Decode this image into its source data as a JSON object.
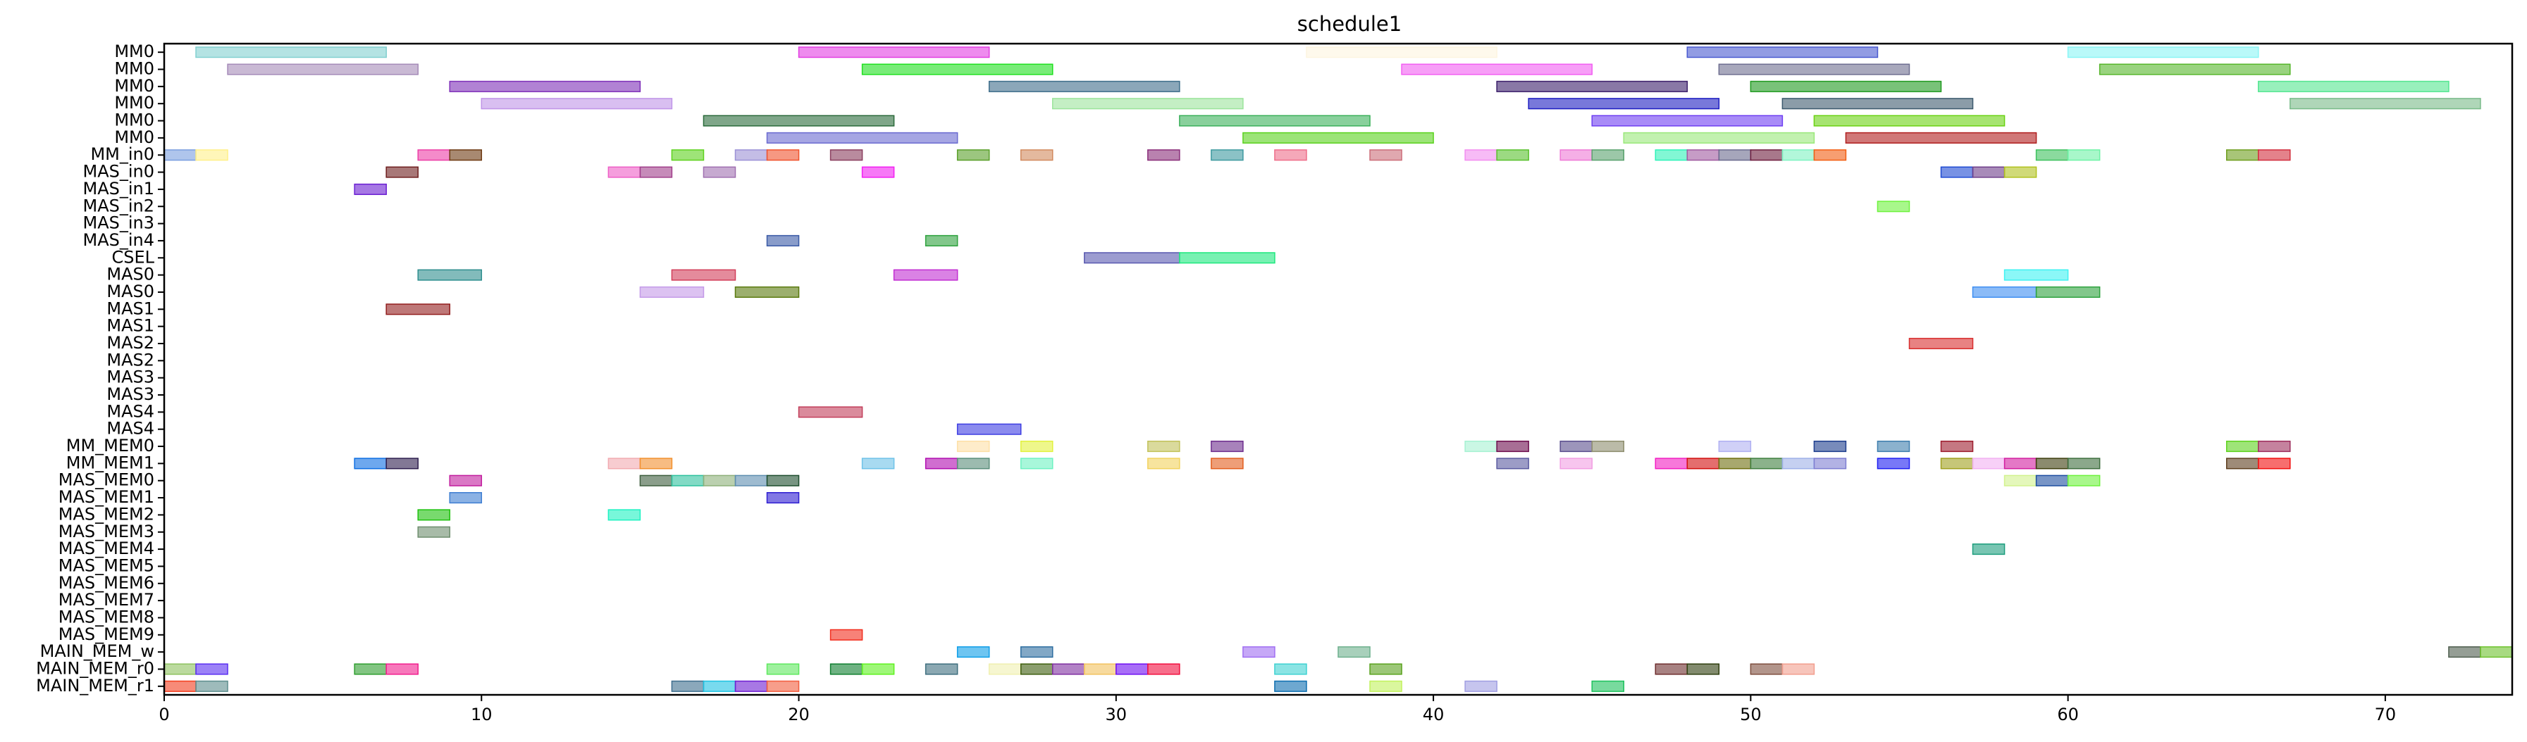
{
  "chart_data": {
    "type": "gantt",
    "title": "schedule1",
    "xlim": [
      0,
      74
    ],
    "xticks": [
      0,
      10,
      20,
      30,
      40,
      50,
      60,
      70
    ],
    "rows": [
      "MM0",
      "MM0",
      "MM0",
      "MM0",
      "MM0",
      "MM0",
      "MM_in0",
      "MAS_in0",
      "MAS_in1",
      "MAS_in2",
      "MAS_in3",
      "MAS_in4",
      "CSEL",
      "MAS0",
      "MAS0",
      "MAS1",
      "MAS1",
      "MAS2",
      "MAS2",
      "MAS3",
      "MAS3",
      "MAS4",
      "MAS4",
      "MM_MEM0",
      "MM_MEM1",
      "MAS_MEM0",
      "MAS_MEM1",
      "MAS_MEM2",
      "MAS_MEM3",
      "MAS_MEM4",
      "MAS_MEM5",
      "MAS_MEM6",
      "MAS_MEM7",
      "MAS_MEM8",
      "MAS_MEM9",
      "MAIN_MEM_w",
      "MAIN_MEM_r0",
      "MAIN_MEM_r1"
    ],
    "tasks": [
      [
        0,
        1,
        7,
        "#82d0d0"
      ],
      [
        0,
        20,
        26,
        "#e23ee2"
      ],
      [
        0,
        36,
        42,
        "#fdf5e0"
      ],
      [
        0,
        48,
        54,
        "#4a5ad0"
      ],
      [
        0,
        60,
        66,
        "#8af5f5"
      ],
      [
        1,
        2,
        8,
        "#a58ab8"
      ],
      [
        1,
        22,
        28,
        "#1ee01e"
      ],
      [
        1,
        39,
        45,
        "#f25ef2"
      ],
      [
        1,
        49,
        55,
        "#6e6e90"
      ],
      [
        1,
        61,
        67,
        "#55b52a"
      ],
      [
        2,
        9,
        15,
        "#7d2eb8"
      ],
      [
        2,
        26,
        32,
        "#3d6d8a"
      ],
      [
        2,
        42,
        48,
        "#3a1e6a"
      ],
      [
        2,
        50,
        56,
        "#1f9a1f"
      ],
      [
        2,
        66,
        72,
        "#53e690"
      ],
      [
        3,
        10,
        16,
        "#c095e8"
      ],
      [
        3,
        28,
        34,
        "#9ce49c"
      ],
      [
        3,
        43,
        49,
        "#1e1ec2"
      ],
      [
        3,
        51,
        57,
        "#3d5a6e"
      ],
      [
        3,
        67,
        73,
        "#79bb89"
      ],
      [
        4,
        17,
        23,
        "#2a6a3a"
      ],
      [
        4,
        32,
        38,
        "#3ab05a"
      ],
      [
        4,
        45,
        51,
        "#6e3ef2"
      ],
      [
        4,
        52,
        58,
        "#6ad212"
      ],
      [
        5,
        19,
        25,
        "#6a6ad0"
      ],
      [
        5,
        34,
        40,
        "#5ad21e"
      ],
      [
        5,
        46,
        52,
        "#9ae87a"
      ],
      [
        5,
        53,
        59,
        "#b01e1e"
      ],
      [
        6,
        0,
        1,
        "#7a9edf"
      ],
      [
        6,
        1,
        2,
        "#fff08a"
      ],
      [
        6,
        8,
        9,
        "#ec3ea6"
      ],
      [
        6,
        9,
        10,
        "#6e3a12"
      ],
      [
        6,
        16,
        17,
        "#5ed21e"
      ],
      [
        6,
        18,
        19,
        "#9c91d6"
      ],
      [
        6,
        19,
        20,
        "#f0542e"
      ],
      [
        6,
        21,
        22,
        "#8a3e5e"
      ],
      [
        6,
        25,
        26,
        "#5aa02a"
      ],
      [
        6,
        27,
        28,
        "#d28a5e"
      ],
      [
        6,
        31,
        32,
        "#8a2e7a"
      ],
      [
        6,
        33,
        34,
        "#3e9aa0"
      ],
      [
        6,
        35,
        36,
        "#ee6e8a"
      ],
      [
        6,
        38,
        39,
        "#cc6e7a"
      ],
      [
        6,
        41,
        42,
        "#f28ef0"
      ],
      [
        6,
        42,
        43,
        "#5ac22e"
      ],
      [
        6,
        44,
        45,
        "#ee7ad6"
      ],
      [
        6,
        45,
        46,
        "#5aa26e"
      ],
      [
        6,
        47,
        48,
        "#2ef2b8"
      ],
      [
        6,
        48,
        49,
        "#a05aa0"
      ],
      [
        6,
        49,
        50,
        "#6a6a8e"
      ],
      [
        6,
        50,
        51,
        "#6e1e3e"
      ],
      [
        6,
        51,
        52,
        "#7ef2c2"
      ],
      [
        6,
        52,
        53,
        "#f25e12"
      ],
      [
        6,
        59,
        60,
        "#3ec25e"
      ],
      [
        6,
        60,
        61,
        "#6ef2a6"
      ],
      [
        6,
        65,
        66,
        "#6e9e1e"
      ],
      [
        6,
        66,
        67,
        "#d22e3e"
      ],
      [
        7,
        7,
        8,
        "#6e1e1e"
      ],
      [
        7,
        14,
        15,
        "#ee5ec6"
      ],
      [
        7,
        15,
        16,
        "#a03e8a"
      ],
      [
        7,
        17,
        18,
        "#a070b0"
      ],
      [
        7,
        22,
        23,
        "#f21ef2"
      ],
      [
        7,
        56,
        57,
        "#1e4ad2"
      ],
      [
        7,
        57,
        58,
        "#6e3e8a"
      ],
      [
        7,
        58,
        59,
        "#b0c21e"
      ],
      [
        8,
        6,
        7,
        "#6a1ed2"
      ],
      [
        9,
        54,
        55,
        "#6ef23e"
      ],
      [
        11,
        19,
        20,
        "#3a5aa6"
      ],
      [
        11,
        24,
        25,
        "#2ea23e"
      ],
      [
        12,
        29,
        32,
        "#5a5ab0"
      ],
      [
        12,
        32,
        35,
        "#1ee87e"
      ],
      [
        13,
        8,
        10,
        "#2e8e8e"
      ],
      [
        13,
        16,
        18,
        "#d23e5a"
      ],
      [
        13,
        23,
        25,
        "#c22ed2"
      ],
      [
        13,
        58,
        60,
        "#3ef2f2"
      ],
      [
        14,
        15,
        17,
        "#c49ae8"
      ],
      [
        14,
        18,
        20,
        "#5a7a0e"
      ],
      [
        14,
        57,
        59,
        "#3e8ef2"
      ],
      [
        14,
        59,
        61,
        "#2ea23e"
      ],
      [
        15,
        7,
        9,
        "#921e1e"
      ],
      [
        17,
        55,
        57,
        "#d82e2e"
      ],
      [
        21,
        20,
        22,
        "#c23e5a"
      ],
      [
        22,
        25,
        27,
        "#3e3ee2"
      ],
      [
        23,
        25,
        26,
        "#fde0a6"
      ],
      [
        23,
        27,
        28,
        "#e2f23e"
      ],
      [
        23,
        31,
        32,
        "#c2c25a"
      ],
      [
        23,
        33,
        34,
        "#6e2e8e"
      ],
      [
        23,
        41,
        42,
        "#a6f2d2"
      ],
      [
        23,
        42,
        43,
        "#6e0e4e"
      ],
      [
        23,
        44,
        45,
        "#5a4e8e"
      ],
      [
        23,
        45,
        46,
        "#8e8e6e"
      ],
      [
        23,
        49,
        50,
        "#b0b0f2"
      ],
      [
        23,
        52,
        53,
        "#1e3e8e"
      ],
      [
        23,
        54,
        55,
        "#3e7eae"
      ],
      [
        23,
        56,
        57,
        "#9e1e2e"
      ],
      [
        23,
        65,
        66,
        "#5ed21e"
      ],
      [
        23,
        66,
        67,
        "#9e2e5e"
      ],
      [
        24,
        6,
        7,
        "#0e6ee2"
      ],
      [
        24,
        7,
        8,
        "#2e1e4e"
      ],
      [
        24,
        14,
        15,
        "#f2aab0"
      ],
      [
        24,
        15,
        16,
        "#f2902e"
      ],
      [
        24,
        22,
        23,
        "#6ec2e8"
      ],
      [
        24,
        24,
        25,
        "#b00eb0"
      ],
      [
        24,
        25,
        26,
        "#5a8e7a"
      ],
      [
        24,
        27,
        28,
        "#6ef2c2"
      ],
      [
        24,
        31,
        32,
        "#f2d25e"
      ],
      [
        24,
        33,
        34,
        "#e25e1e"
      ],
      [
        24,
        42,
        43,
        "#5a5aa0"
      ],
      [
        24,
        44,
        45,
        "#f29ee2"
      ],
      [
        24,
        47,
        48,
        "#f21ec2"
      ],
      [
        24,
        48,
        49,
        "#d20e0e"
      ],
      [
        24,
        49,
        50,
        "#6e6e0e"
      ],
      [
        24,
        50,
        51,
        "#3e7e3e"
      ],
      [
        24,
        51,
        52,
        "#9eb0e8"
      ],
      [
        24,
        52,
        53,
        "#7e7ed2"
      ],
      [
        24,
        54,
        55,
        "#1e1ef2"
      ],
      [
        24,
        56,
        57,
        "#a0a01e"
      ],
      [
        24,
        57,
        58,
        "#f2b0f2"
      ],
      [
        24,
        58,
        59,
        "#d21ea0"
      ],
      [
        24,
        59,
        60,
        "#3e3e0e"
      ],
      [
        24,
        60,
        61,
        "#3e6e3e"
      ],
      [
        24,
        65,
        66,
        "#5e3e1e"
      ],
      [
        24,
        66,
        67,
        "#f20e0e"
      ],
      [
        25,
        9,
        10,
        "#c21e9e"
      ],
      [
        25,
        15,
        16,
        "#3e5e3e"
      ],
      [
        25,
        16,
        17,
        "#2ec29e"
      ],
      [
        25,
        17,
        18,
        "#8eb07a"
      ],
      [
        25,
        18,
        19,
        "#5e8eb0"
      ],
      [
        25,
        19,
        20,
        "#1e4e2e"
      ],
      [
        25,
        58,
        59,
        "#d2f28e"
      ],
      [
        25,
        59,
        60,
        "#1e4ea0"
      ],
      [
        25,
        60,
        61,
        "#6ef23e"
      ],
      [
        26,
        9,
        10,
        "#3e7ed2"
      ],
      [
        26,
        19,
        20,
        "#2e1ed2"
      ],
      [
        27,
        8,
        9,
        "#1ec20e"
      ],
      [
        27,
        14,
        15,
        "#1ef2c2"
      ],
      [
        28,
        8,
        9,
        "#6e8e6e"
      ],
      [
        29,
        57,
        58,
        "#1e9e7e"
      ],
      [
        34,
        21,
        22,
        "#f22e1e"
      ],
      [
        35,
        25,
        26,
        "#0e9ee8"
      ],
      [
        35,
        27,
        28,
        "#2e6ea0"
      ],
      [
        35,
        34,
        35,
        "#a06ef2"
      ],
      [
        35,
        37,
        38,
        "#6eb08e"
      ],
      [
        35,
        72,
        73,
        "#4e5e4e"
      ],
      [
        35,
        73,
        74,
        "#6ec22e"
      ],
      [
        36,
        0,
        1,
        "#8ec25e"
      ],
      [
        36,
        1,
        2,
        "#5a2ef2"
      ],
      [
        36,
        6,
        7,
        "#2e9e2e"
      ],
      [
        36,
        7,
        8,
        "#f21e8e"
      ],
      [
        36,
        19,
        20,
        "#5ee85e"
      ],
      [
        36,
        21,
        22,
        "#0e7e2e"
      ],
      [
        36,
        22,
        23,
        "#5ef21e"
      ],
      [
        36,
        24,
        25,
        "#3e6e7e"
      ],
      [
        36,
        26,
        27,
        "#f0f0b0"
      ],
      [
        36,
        27,
        28,
        "#3e5e0e"
      ],
      [
        36,
        28,
        29,
        "#7e2ea0"
      ],
      [
        36,
        29,
        30,
        "#f2c25e"
      ],
      [
        36,
        30,
        31,
        "#6e0ef2"
      ],
      [
        36,
        31,
        32,
        "#f20e3e"
      ],
      [
        36,
        35,
        36,
        "#3ed2d2"
      ],
      [
        36,
        38,
        39,
        "#5aa21e"
      ],
      [
        36,
        47,
        48,
        "#6e2e2e"
      ],
      [
        36,
        48,
        49,
        "#2e3e0e"
      ],
      [
        36,
        50,
        51,
        "#7e4e3e"
      ],
      [
        36,
        51,
        52,
        "#f29e8e"
      ],
      [
        37,
        0,
        1,
        "#f23e1e"
      ],
      [
        37,
        1,
        2,
        "#5e8e8e"
      ],
      [
        37,
        16,
        17,
        "#3e6e8e"
      ],
      [
        37,
        17,
        18,
        "#1ec2e2"
      ],
      [
        37,
        18,
        19,
        "#6e1ed2"
      ],
      [
        37,
        19,
        20,
        "#f25e3e"
      ],
      [
        37,
        35,
        36,
        "#0e6eb0"
      ],
      [
        37,
        38,
        39,
        "#c2f25e"
      ],
      [
        37,
        41,
        42,
        "#a09ee2"
      ],
      [
        37,
        45,
        46,
        "#1ec25e"
      ]
    ]
  }
}
